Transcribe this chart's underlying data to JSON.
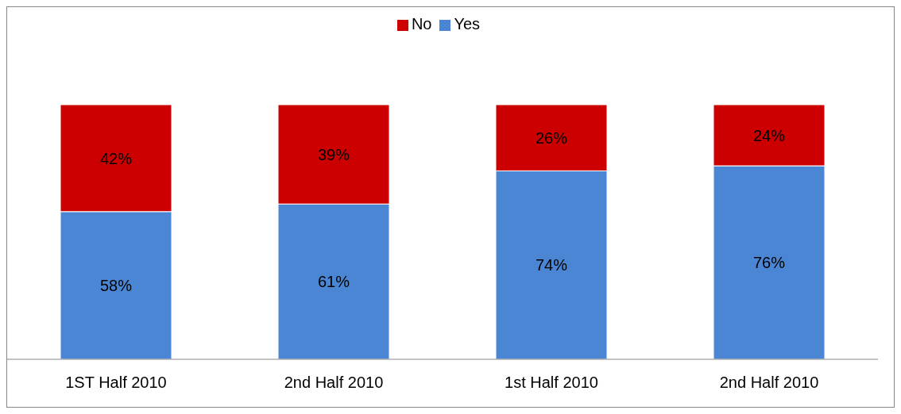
{
  "chart_data": {
    "type": "bar",
    "stacked": true,
    "categories": [
      "1ST Half 2010",
      "2nd Half 2010",
      "1st Half 2010",
      "2nd Half 2010"
    ],
    "series": [
      {
        "name": "Yes",
        "color": "#4a86d4",
        "values": [
          58,
          61,
          74,
          76
        ],
        "value_labels": [
          "58%",
          "61%",
          "74%",
          "76%"
        ]
      },
      {
        "name": "No",
        "color": "#cc0000",
        "values": [
          42,
          39,
          26,
          24
        ],
        "value_labels": [
          "42%",
          "39%",
          "26%",
          "24%"
        ]
      }
    ],
    "ylim": [
      0,
      100
    ],
    "legend": "top",
    "grid": false,
    "tick_labels": "x"
  }
}
